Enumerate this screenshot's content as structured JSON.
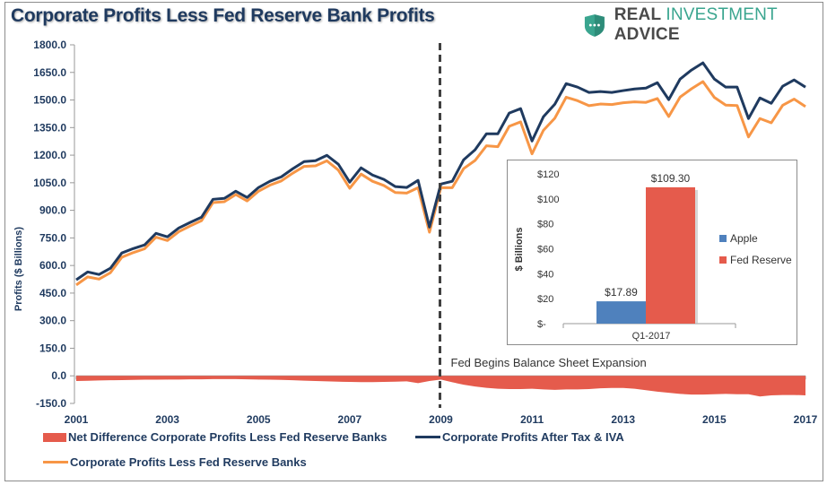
{
  "header": {
    "title": "Corporate Profits Less Fed Reserve Bank Profits",
    "logo": {
      "word1": "REAL",
      "word2": "INVESTMENT",
      "word3": "ADVICE",
      "icon": "shield-dots-icon"
    }
  },
  "colors": {
    "navy": "#1f3a5f",
    "orange": "#f79646",
    "red": "#e55b4c",
    "blue": "#4f81bd",
    "logo_green": "#3aa58f"
  },
  "chart_data": [
    {
      "type": "line",
      "title": "Corporate Profits Less Fed Reserve Bank Profits",
      "xlabel": "",
      "ylabel": "Profits ($ Billions)",
      "ylim": [
        -150,
        1800
      ],
      "yticks": [
        -150,
        0,
        150,
        300,
        450,
        600,
        750,
        900,
        1050,
        1200,
        1350,
        1500,
        1650,
        1800
      ],
      "ytick_labels": [
        "-150.0",
        "0.0",
        "150.0",
        "300.0",
        "450.0",
        "600.0",
        "750.0",
        "900.0",
        "1050.0",
        "1200.0",
        "1350.0",
        "1500.0",
        "1650.0",
        "1800.0"
      ],
      "xlim": [
        2001,
        2017
      ],
      "xtick_labels": [
        "2001",
        "2003",
        "2005",
        "2007",
        "2009",
        "2011",
        "2013",
        "2015",
        "2017"
      ],
      "grid": false,
      "legend_position": "bottom",
      "annotation": {
        "text": "Fed Begins Balance Sheet Expansion",
        "x": 2009
      },
      "x": [
        2001.0,
        2001.25,
        2001.5,
        2001.75,
        2002.0,
        2002.25,
        2002.5,
        2002.75,
        2003.0,
        2003.25,
        2003.5,
        2003.75,
        2004.0,
        2004.25,
        2004.5,
        2004.75,
        2005.0,
        2005.25,
        2005.5,
        2005.75,
        2006.0,
        2006.25,
        2006.5,
        2006.75,
        2007.0,
        2007.25,
        2007.5,
        2007.75,
        2008.0,
        2008.25,
        2008.5,
        2008.75,
        2009.0,
        2009.25,
        2009.5,
        2009.75,
        2010.0,
        2010.25,
        2010.5,
        2010.75,
        2011.0,
        2011.25,
        2011.5,
        2011.75,
        2012.0,
        2012.25,
        2012.5,
        2012.75,
        2013.0,
        2013.25,
        2013.5,
        2013.75,
        2014.0,
        2014.25,
        2014.5,
        2014.75,
        2015.0,
        2015.25,
        2015.5,
        2015.75,
        2016.0,
        2016.25,
        2016.5,
        2016.75,
        2017.0
      ],
      "series": [
        {
          "name": "Net Difference Corporate Profits Less Fed Reserve Banks",
          "type": "area",
          "values": [
            -28,
            -27,
            -25,
            -24,
            -23,
            -22,
            -21,
            -21,
            -20,
            -20,
            -19,
            -19,
            -18,
            -18,
            -18,
            -19,
            -20,
            -21,
            -22,
            -24,
            -26,
            -28,
            -30,
            -32,
            -33,
            -34,
            -34,
            -33,
            -32,
            -30,
            -40,
            -28,
            -20,
            -35,
            -48,
            -58,
            -65,
            -70,
            -72,
            -72,
            -70,
            -74,
            -76,
            -74,
            -74,
            -72,
            -68,
            -66,
            -66,
            -70,
            -78,
            -86,
            -92,
            -98,
            -102,
            -102,
            -100,
            -98,
            -100,
            -100,
            -112,
            -106,
            -104,
            -104,
            -106
          ]
        },
        {
          "name": "Corporate Profits After Tax & IVA",
          "type": "line",
          "values": [
            522,
            565,
            551,
            585,
            668,
            692,
            712,
            775,
            756,
            804,
            834,
            863,
            960,
            965,
            1004,
            970,
            1024,
            1058,
            1082,
            1126,
            1165,
            1170,
            1199,
            1151,
            1053,
            1131,
            1092,
            1068,
            1029,
            1024,
            1063,
            809,
            1043,
            1058,
            1175,
            1229,
            1316,
            1316,
            1429,
            1453,
            1277,
            1409,
            1477,
            1589,
            1570,
            1541,
            1546,
            1541,
            1551,
            1560,
            1565,
            1594,
            1502,
            1614,
            1663,
            1702,
            1614,
            1570,
            1570,
            1399,
            1511,
            1482,
            1575,
            1609,
            1570
          ]
        },
        {
          "name": "Corporate Profits Less Fed Reserve Banks",
          "type": "line",
          "values": [
            494,
            538,
            526,
            561,
            645,
            670,
            691,
            754,
            736,
            784,
            815,
            844,
            942,
            947,
            986,
            951,
            1004,
            1037,
            1060,
            1102,
            1139,
            1142,
            1169,
            1119,
            1020,
            1097,
            1058,
            1035,
            997,
            994,
            1023,
            781,
            1023,
            1023,
            1127,
            1171,
            1251,
            1246,
            1357,
            1381,
            1207,
            1335,
            1401,
            1515,
            1496,
            1469,
            1478,
            1475,
            1485,
            1490,
            1487,
            1508,
            1410,
            1516,
            1561,
            1600,
            1514,
            1472,
            1470,
            1299,
            1399,
            1376,
            1471,
            1505,
            1464
          ]
        }
      ]
    },
    {
      "type": "bar",
      "title": "",
      "xlabel": "",
      "ylabel": "$ Billions",
      "ylim": [
        0,
        120
      ],
      "ytick_labels": [
        "$-",
        "$20",
        "$40",
        "$60",
        "$80",
        "$100",
        "$120"
      ],
      "categories": [
        "Q1-2017"
      ],
      "grid": false,
      "legend_position": "right",
      "series": [
        {
          "name": "Apple",
          "values": [
            17.89
          ],
          "label": "$17.89"
        },
        {
          "name": "Fed Reserve",
          "values": [
            109.3
          ],
          "label": "$109.30"
        }
      ]
    }
  ]
}
